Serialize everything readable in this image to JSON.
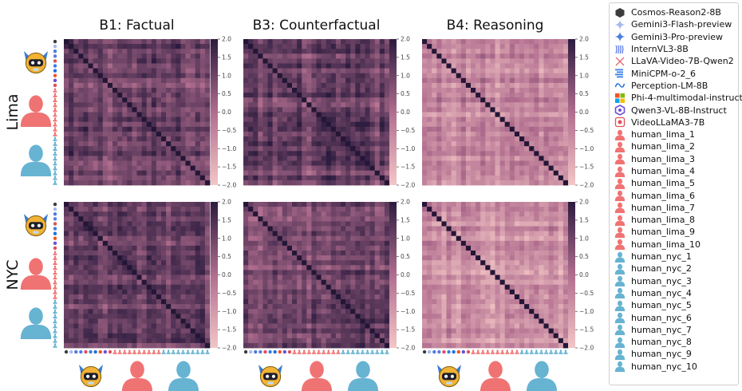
{
  "chart_data": {
    "type": "heatmap",
    "columns": [
      "B1: Factual",
      "B3: Counterfactual",
      "B4: Reasoning"
    ],
    "rows": [
      "Lima",
      "NYC"
    ],
    "colorbar": {
      "ticks": [
        "2.0",
        "1.5",
        "1.0",
        "0.5",
        "0.0",
        "−0.5",
        "−1.0",
        "−1.5",
        "−2.0"
      ],
      "range": [
        -2.0,
        2.0
      ]
    },
    "colormap": {
      "low": "#f4c6c6",
      "mid": "#b06d8e",
      "high": "#2b1b3e",
      "diagonal": "#241636"
    },
    "n_annotators": 30,
    "panel_mean_values": [
      {
        "row": "Lima",
        "column": "B1: Factual",
        "mean_z": 0.9
      },
      {
        "row": "Lima",
        "column": "B3: Counterfactual",
        "mean_z": 0.9
      },
      {
        "row": "Lima",
        "column": "B4: Reasoning",
        "mean_z": -0.6
      },
      {
        "row": "NYC",
        "column": "B1: Factual",
        "mean_z": 0.9
      },
      {
        "row": "NYC",
        "column": "B3: Counterfactual",
        "mean_z": 0.9
      },
      {
        "row": "NYC",
        "column": "B4: Reasoning",
        "mean_z": -0.9
      }
    ],
    "legend": [
      {
        "label": "Cosmos-Reason2-8B",
        "icon": "cosmos-icon",
        "color": "#3d3d3d"
      },
      {
        "label": "Gemini3-Flash-preview",
        "icon": "gemini-flash-icon",
        "color": "#a7b8f0"
      },
      {
        "label": "Gemini3-Pro-preview",
        "icon": "gemini-pro-icon",
        "color": "#4a7de0"
      },
      {
        "label": "InternVL3-8B",
        "icon": "internvl-icon",
        "color": "#5b7be8"
      },
      {
        "label": "LLaVA-Video-7B-Qwen2",
        "icon": "llava-icon",
        "color": "#e0505a"
      },
      {
        "label": "MiniCPM-o-2_6",
        "icon": "minicpm-icon",
        "color": "#3b7de8"
      },
      {
        "label": "Perception-LM-8B",
        "icon": "meta-icon",
        "color": "#1f6fe0"
      },
      {
        "label": "Phi-4-multimodal-instruct",
        "icon": "microsoft-icon",
        "color": "#f35325"
      },
      {
        "label": "Qwen3-VL-8B-Instruct",
        "icon": "qwen-icon",
        "color": "#6c4fd8"
      },
      {
        "label": "VideoLLaMA3-7B",
        "icon": "videollama-icon",
        "color": "#e0505a"
      },
      {
        "label": "human_lima_1",
        "icon": "person-icon",
        "color": "#f07373"
      },
      {
        "label": "human_lima_2",
        "icon": "person-icon",
        "color": "#f07373"
      },
      {
        "label": "human_lima_3",
        "icon": "person-icon",
        "color": "#f07373"
      },
      {
        "label": "human_lima_4",
        "icon": "person-icon",
        "color": "#f07373"
      },
      {
        "label": "human_lima_5",
        "icon": "person-icon",
        "color": "#f07373"
      },
      {
        "label": "human_lima_6",
        "icon": "person-icon",
        "color": "#f07373"
      },
      {
        "label": "human_lima_7",
        "icon": "person-icon",
        "color": "#f07373"
      },
      {
        "label": "human_lima_8",
        "icon": "person-icon",
        "color": "#f07373"
      },
      {
        "label": "human_lima_9",
        "icon": "person-icon",
        "color": "#f07373"
      },
      {
        "label": "human_lima_10",
        "icon": "person-icon",
        "color": "#f07373"
      },
      {
        "label": "human_nyc_1",
        "icon": "person-icon",
        "color": "#67b3d2"
      },
      {
        "label": "human_nyc_2",
        "icon": "person-icon",
        "color": "#67b3d2"
      },
      {
        "label": "human_nyc_3",
        "icon": "person-icon",
        "color": "#67b3d2"
      },
      {
        "label": "human_nyc_4",
        "icon": "person-icon",
        "color": "#67b3d2"
      },
      {
        "label": "human_nyc_5",
        "icon": "person-icon",
        "color": "#67b3d2"
      },
      {
        "label": "human_nyc_6",
        "icon": "person-icon",
        "color": "#67b3d2"
      },
      {
        "label": "human_nyc_7",
        "icon": "person-icon",
        "color": "#67b3d2"
      },
      {
        "label": "human_nyc_8",
        "icon": "person-icon",
        "color": "#67b3d2"
      },
      {
        "label": "human_nyc_9",
        "icon": "person-icon",
        "color": "#67b3d2"
      },
      {
        "label": "human_nyc_10",
        "icon": "person-icon",
        "color": "#67b3d2"
      }
    ],
    "group_colors": {
      "lima": "#f07373",
      "nyc": "#67b3d2"
    }
  }
}
